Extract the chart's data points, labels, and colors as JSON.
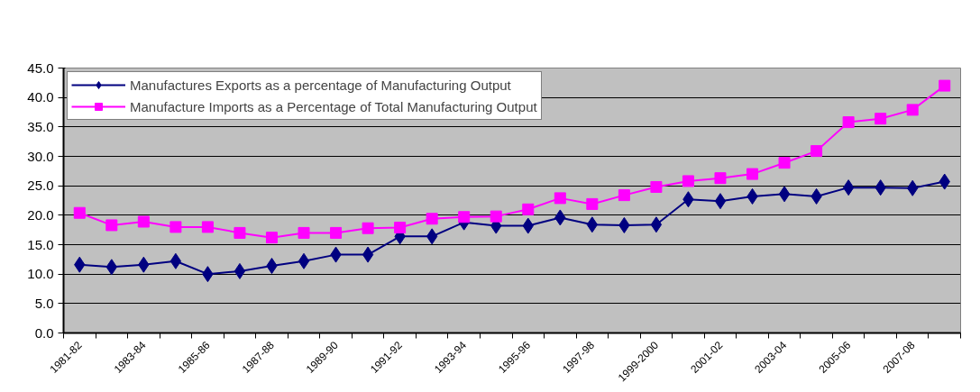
{
  "chart_data": {
    "type": "line",
    "categories": [
      "1981-82",
      null,
      "1983-84",
      null,
      "1985-86",
      null,
      "1987-88",
      null,
      "1989-90",
      null,
      "1991-92",
      null,
      "1993-94",
      null,
      "1995-96",
      null,
      "1997-98",
      null,
      "1999-2000",
      null,
      "2001-02",
      null,
      "2003-04",
      null,
      "2005-06",
      null,
      "2007-08",
      null
    ],
    "series": [
      {
        "name": "Manufactures Exports as a percentage of Manufacturing Output",
        "color": "#000080",
        "marker": "diamond",
        "values": [
          11.6,
          11.2,
          11.6,
          12.2,
          10.0,
          10.5,
          11.4,
          12.2,
          13.3,
          13.3,
          16.4,
          16.4,
          18.8,
          18.2,
          18.2,
          19.6,
          18.4,
          18.3,
          18.4,
          22.7,
          22.4,
          23.2,
          23.6,
          23.2,
          24.7,
          24.7,
          24.6,
          25.7
        ]
      },
      {
        "name": "Manufacture Imports as a Percentage of Total Manufacturing Output",
        "color": "#ff00ff",
        "marker": "square",
        "values": [
          20.4,
          18.3,
          18.9,
          18.0,
          18.0,
          17.0,
          16.2,
          17.0,
          17.0,
          17.8,
          17.9,
          19.4,
          19.7,
          19.8,
          21.0,
          22.9,
          21.9,
          23.4,
          24.8,
          25.8,
          26.3,
          27.0,
          28.9,
          30.9,
          35.8,
          36.4,
          37.9,
          42.0
        ]
      }
    ],
    "ylim": [
      0,
      45
    ],
    "yticks": [
      {
        "value": 0,
        "label": "0.0"
      },
      {
        "value": 5,
        "label": "5.0"
      },
      {
        "value": 10,
        "label": "10.0"
      },
      {
        "value": 15,
        "label": "15.0"
      },
      {
        "value": 20,
        "label": "20.0"
      },
      {
        "value": 25,
        "label": "25.0"
      },
      {
        "value": 30,
        "label": "30.0"
      },
      {
        "value": 35,
        "label": "35.0"
      },
      {
        "value": 40,
        "label": "40.0"
      },
      {
        "value": 45,
        "label": "45.0"
      }
    ],
    "grid": "y",
    "legend": "top left",
    "line_style": "solid"
  }
}
